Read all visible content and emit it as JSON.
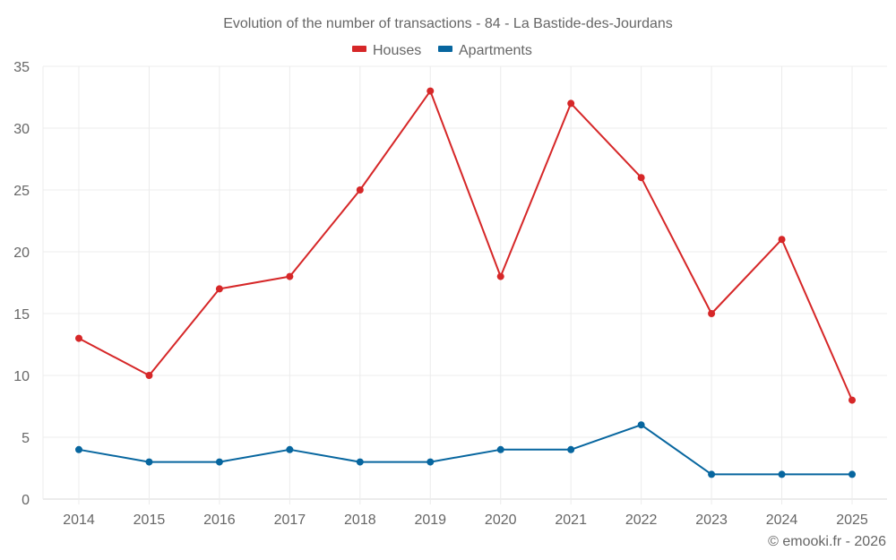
{
  "chart_data": {
    "type": "line",
    "title": "Evolution of the number of transactions - 84 - La Bastide-des-Jourdans",
    "xlabel": "",
    "ylabel": "",
    "categories": [
      "2014",
      "2015",
      "2016",
      "2017",
      "2018",
      "2019",
      "2020",
      "2021",
      "2022",
      "2023",
      "2024",
      "2025"
    ],
    "ylim": [
      0,
      35
    ],
    "yticks": [
      "0",
      "5",
      "10",
      "15",
      "20",
      "25",
      "30",
      "35"
    ],
    "ytick_values": [
      0,
      5,
      10,
      15,
      20,
      25,
      30,
      35
    ],
    "grid": true,
    "legend_position": "top-center",
    "series": [
      {
        "name": "Houses",
        "color": "#d62728",
        "values": [
          13,
          10,
          17,
          18,
          25,
          33,
          18,
          32,
          26,
          15,
          21,
          8
        ]
      },
      {
        "name": "Apartments",
        "color": "#07669f",
        "values": [
          4,
          3,
          3,
          4,
          3,
          3,
          4,
          4,
          6,
          2,
          2,
          2
        ]
      }
    ],
    "credit": "© emooki.fr - 2026"
  }
}
